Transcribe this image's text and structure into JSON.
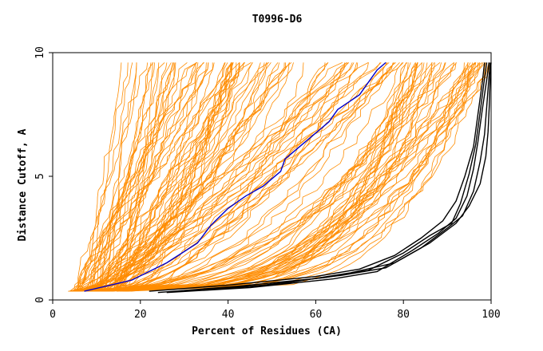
{
  "chart_data": {
    "type": "line",
    "title": "T0996-D6",
    "xlabel": "Percent of Residues (CA)",
    "ylabel": "Distance Cutoff, A",
    "xlim": [
      0,
      100
    ],
    "ylim": [
      0,
      10
    ],
    "xticks": [
      0,
      20,
      40,
      60,
      80,
      100
    ],
    "yticks": [
      0,
      5,
      10
    ],
    "grid": false,
    "colors": {
      "background_models": "#ff8c00",
      "highlighted_blue": "#0000cc",
      "highlighted_black": "#000000",
      "axes": "#000000"
    },
    "series": [
      {
        "name": "highlighted-blue",
        "color": "#0000cc",
        "x": [
          7.2,
          12,
          18,
          26,
          33,
          36,
          40,
          44,
          48,
          52,
          53,
          57,
          63,
          65,
          70,
          72,
          74,
          76
        ],
        "y": [
          0.35,
          0.55,
          0.8,
          1.5,
          2.3,
          3.0,
          3.7,
          4.2,
          4.6,
          5.2,
          5.7,
          6.3,
          7.2,
          7.7,
          8.3,
          8.8,
          9.3,
          9.6
        ]
      },
      {
        "name": "highlighted-black-1",
        "color": "#000000",
        "x": [
          22,
          40,
          60,
          70,
          78,
          84,
          89,
          92,
          94,
          96,
          97,
          98,
          98.5
        ],
        "y": [
          0.35,
          0.6,
          0.95,
          1.25,
          1.8,
          2.5,
          3.2,
          4.0,
          5.0,
          6.2,
          7.5,
          8.8,
          9.6
        ]
      },
      {
        "name": "highlighted-black-2",
        "color": "#000000",
        "x": [
          24,
          42,
          62,
          72,
          80,
          86,
          91,
          93,
          95,
          96.5,
          97.5,
          98.3,
          99
        ],
        "y": [
          0.3,
          0.55,
          0.9,
          1.2,
          1.9,
          2.6,
          3.1,
          3.9,
          5.1,
          6.3,
          7.6,
          8.7,
          9.6
        ]
      },
      {
        "name": "highlighted-black-3",
        "color": "#000000",
        "x": [
          26,
          45,
          64,
          74,
          82,
          88,
          92,
          94.5,
          96,
          97,
          98,
          99,
          99.5
        ],
        "y": [
          0.3,
          0.5,
          0.85,
          1.15,
          2.0,
          2.7,
          3.3,
          4.2,
          5.3,
          6.4,
          7.7,
          8.9,
          9.6
        ]
      },
      {
        "name": "highlighted-black-4",
        "color": "#000000",
        "x": [
          30,
          48,
          66,
          76,
          84,
          90,
          93.5,
          96,
          97.5,
          98.5,
          99,
          99.5,
          99.8
        ],
        "y": [
          0.35,
          0.6,
          1.0,
          1.3,
          2.1,
          2.9,
          3.4,
          4.4,
          5.6,
          6.7,
          7.8,
          9.0,
          9.6
        ]
      },
      {
        "name": "highlighted-black-5",
        "color": "#000000",
        "x": [
          35,
          52,
          68,
          78,
          86,
          92,
          95,
          97.5,
          98.8,
          99.3,
          99.6,
          99.8,
          100
        ],
        "y": [
          0.4,
          0.65,
          1.1,
          1.5,
          2.3,
          3.1,
          3.8,
          4.7,
          5.8,
          6.8,
          7.9,
          9.0,
          9.6
        ]
      }
    ]
  }
}
